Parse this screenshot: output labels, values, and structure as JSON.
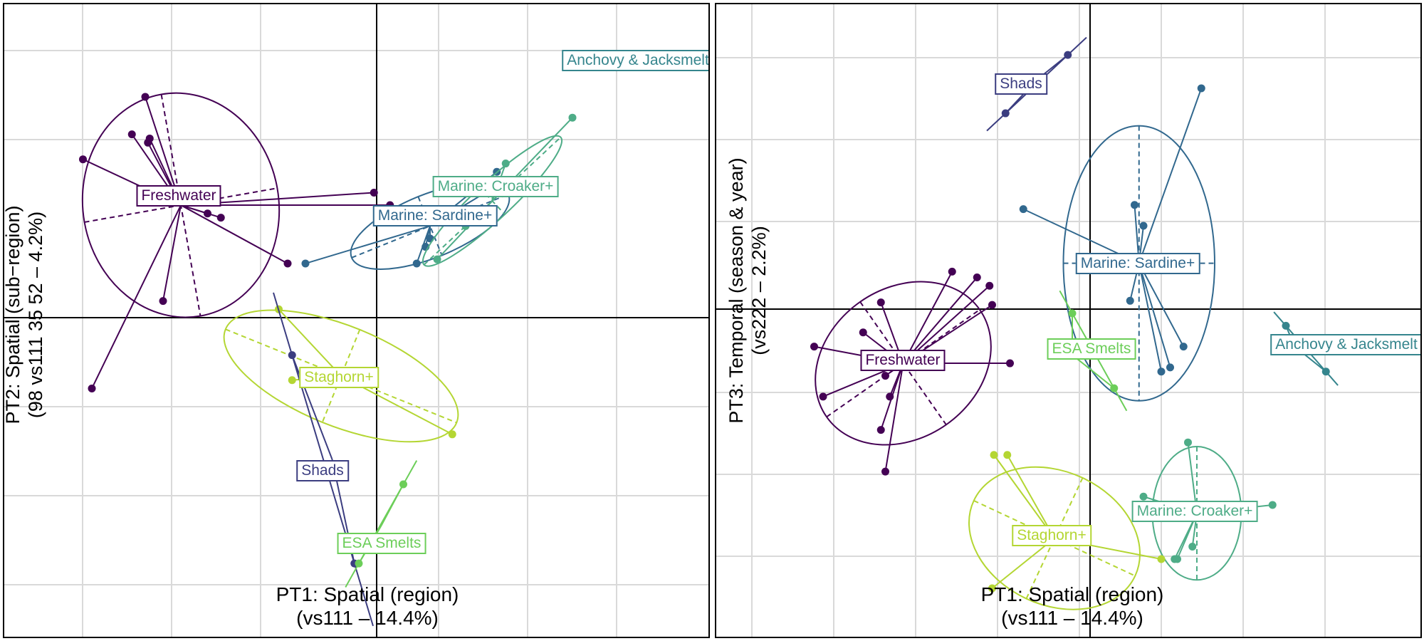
{
  "colors": {
    "Freshwater": "#440154",
    "Shads": "#3b3d80",
    "Marine: Sardine+": "#31688e",
    "Anchovy & Jacksmelt": "#35858d",
    "Marine: Croaker+": "#4eac87",
    "ESA Smelts": "#6cce59",
    "Staghorn+": "#b4d633"
  },
  "chart_data": [
    {
      "type": "scatter",
      "title": "",
      "xlabel": "PT1: Spatial (region)\n(vs111 – 14.4%)",
      "ylabel": "PT2: Spatial (sub−region)\n(98 vs111 35 52 – 4.2%)",
      "xlim": [
        -4.2,
        3.8
      ],
      "ylim": [
        -3.5,
        3.5
      ],
      "grid": true,
      "series": [
        {
          "name": "Freshwater",
          "centroid": [
            -2.2,
            1.35
          ],
          "x": [
            -2.6,
            -2.75,
            -2.55,
            -2.57,
            -3.3,
            -0.03,
            0.15,
            -1.75,
            -1.9,
            -3.2,
            -2.4,
            -1.0
          ],
          "y": [
            2.65,
            2.2,
            2.15,
            2.1,
            1.9,
            1.5,
            1.35,
            1.2,
            1.25,
            -0.85,
            0.2,
            0.65
          ],
          "ellipse": {
            "rx": 1.1,
            "ry": 1.35,
            "angle": -10
          }
        },
        {
          "name": "Marine: Sardine+",
          "centroid": [
            0.6,
            1.1
          ],
          "x": [
            1.35,
            1.3,
            0.6,
            0.55,
            0.45,
            -0.8
          ],
          "y": [
            1.75,
            1.55,
            0.95,
            0.85,
            0.65,
            0.65
          ],
          "ellipse": {
            "rx": 0.95,
            "ry": 0.38,
            "angle": -22
          }
        },
        {
          "name": "Marine: Croaker+",
          "centroid": [
            1.3,
            1.4
          ],
          "x": [
            1.45,
            1.3,
            1.0,
            2.2,
            0.68
          ],
          "y": [
            1.85,
            1.65,
            1.1,
            2.4,
            0.7
          ],
          "ellipse": {
            "rx": 1.05,
            "ry": 0.22,
            "angle": -43
          }
        },
        {
          "name": "Anchovy & Jacksmelt",
          "x": [],
          "y": []
        },
        {
          "name": "Staghorn+",
          "centroid": [
            -0.4,
            -0.7
          ],
          "x": [
            -1.1,
            -0.95,
            0.85
          ],
          "y": [
            0.1,
            -0.75,
            -1.4
          ],
          "ellipse": {
            "rx": 1.4,
            "ry": 0.6,
            "angle": 22
          }
        },
        {
          "name": "Shads",
          "centroid": [
            -0.5,
            -1.7
          ],
          "x": [
            -0.95,
            -0.25
          ],
          "y": [
            -0.45,
            -2.95
          ],
          "ellipse": null
        },
        {
          "name": "ESA Smelts",
          "centroid": [
            0.05,
            -2.5
          ],
          "x": [
            0.3,
            -0.2
          ],
          "y": [
            -2.0,
            -2.95
          ],
          "ellipse": null
        }
      ]
    },
    {
      "type": "scatter",
      "title": "",
      "xlabel": "PT1: Spatial (region)\n(vs111 – 14.4%)",
      "ylabel": "PT3: Temporal (season & year)\n(vs222 – 2.2%)",
      "xlim": [
        -4.2,
        3.8
      ],
      "ylim": [
        -3.5,
        3.5
      ],
      "grid": true,
      "series": [
        {
          "name": "Freshwater",
          "centroid": [
            -2.1,
            -0.65
          ],
          "x": [
            -1.55,
            -1.27,
            -1.13,
            -1.1,
            -0.9,
            -2.55,
            -3.1,
            -2.3,
            -2.25,
            -3.0,
            -2.35,
            -2.3,
            -2.35
          ],
          "y": [
            0.45,
            0.38,
            0.28,
            0.05,
            -0.65,
            -0.28,
            -0.45,
            -0.8,
            -1.05,
            -1.05,
            -1.45,
            -1.95,
            0.08
          ],
          "ellipse": {
            "rx": 1.05,
            "ry": 0.9,
            "angle": -35
          }
        },
        {
          "name": "Marine: Sardine+",
          "centroid": [
            0.55,
            0.55
          ],
          "x": [
            1.25,
            -0.75,
            0.5,
            0.6,
            0.45,
            1.05,
            0.9,
            0.8
          ],
          "y": [
            2.65,
            1.2,
            1.25,
            1.0,
            0.1,
            -0.45,
            -0.7,
            -0.75
          ],
          "ellipse": {
            "rx": 0.85,
            "ry": 1.65,
            "angle": 0
          }
        },
        {
          "name": "Shads",
          "centroid": [
            -0.6,
            2.75
          ],
          "x": [
            -0.25,
            -0.95
          ],
          "y": [
            3.05,
            2.35
          ],
          "ellipse": null
        },
        {
          "name": "Anchovy & Jacksmelt",
          "centroid": [
            2.3,
            -0.45
          ],
          "x": [
            2.2,
            2.65
          ],
          "y": [
            -0.2,
            -0.75
          ],
          "ellipse": null
        },
        {
          "name": "ESA Smelts",
          "centroid": [
            -0.2,
            -0.55
          ],
          "x": [
            -0.2,
            0.27
          ],
          "y": [
            -0.05,
            -0.95
          ],
          "ellipse": null
        },
        {
          "name": "Marine: Croaker+",
          "centroid": [
            1.2,
            -2.45
          ],
          "x": [
            1.1,
            0.6,
            2.05,
            1.15,
            0.95,
            0.98
          ],
          "y": [
            -1.6,
            -2.25,
            -2.35,
            -2.85,
            -3.0,
            -3.0
          ],
          "ellipse": {
            "rx": 0.5,
            "ry": 0.8,
            "angle": 0
          }
        },
        {
          "name": "Staghorn+",
          "centroid": [
            -0.4,
            -2.75
          ],
          "x": [
            -0.93,
            -1.08,
            0.8,
            -1.1
          ],
          "y": [
            -1.75,
            -1.75,
            -3.0,
            -3.35
          ],
          "ellipse": {
            "rx": 1.0,
            "ry": 0.8,
            "angle": 25
          }
        }
      ]
    }
  ]
}
